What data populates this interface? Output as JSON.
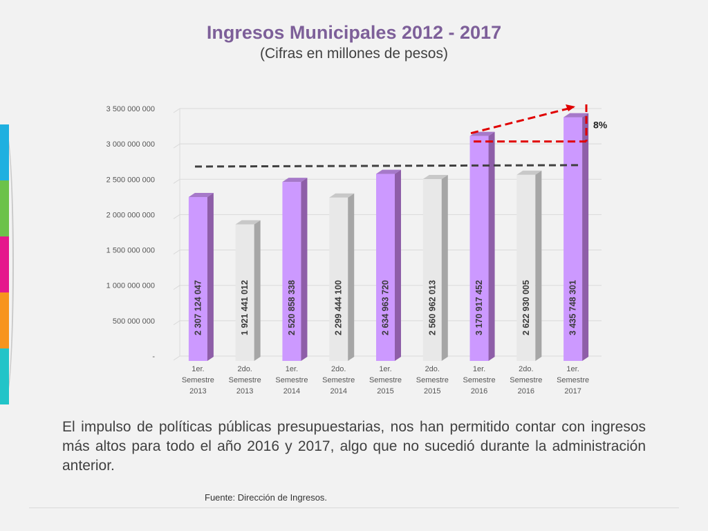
{
  "header": {
    "title": "Ingresos Municipales 2012 - 2017",
    "subtitle": "(Cifras en millones de pesos)"
  },
  "chart_data": {
    "type": "bar",
    "title": "",
    "xlabel": "",
    "ylabel": "",
    "ylim": [
      0,
      3500000000
    ],
    "y_ticks": [
      {
        "value": 0,
        "label": "-"
      },
      {
        "value": 500000000,
        "label": "500 000 000"
      },
      {
        "value": 1000000000,
        "label": "1 000 000 000"
      },
      {
        "value": 1500000000,
        "label": "1 500 000 000"
      },
      {
        "value": 2000000000,
        "label": "2 000 000 000"
      },
      {
        "value": 2500000000,
        "label": "2 500 000 000"
      },
      {
        "value": 3000000000,
        "label": "3 000 000 000"
      },
      {
        "value": 3500000000,
        "label": "3 500 000 000"
      }
    ],
    "categories": [
      [
        "1er.",
        "Semestre",
        "2013"
      ],
      [
        "2do.",
        "Semestre",
        "2013"
      ],
      [
        "1er.",
        "Semestre",
        "2014"
      ],
      [
        "2do.",
        "Semestre",
        "2014"
      ],
      [
        "1er.",
        "Semestre",
        "2015"
      ],
      [
        "2do.",
        "Semestre",
        "2015"
      ],
      [
        "1er.",
        "Semestre",
        "2016"
      ],
      [
        "2do.",
        "Semestre",
        "2016"
      ],
      [
        "1er.",
        "Semestre",
        "2017"
      ]
    ],
    "values": [
      2307124047,
      1921441012,
      2520858338,
      2299444100,
      2634963720,
      2560962013,
      3170917452,
      2622930005,
      3435748301
    ],
    "value_labels": [
      "2 307 124 047",
      "1 921 441 012",
      "2 520 858 338",
      "2 299 444 100",
      "2 634 963 720",
      "2 560 962 013",
      "3 170 917 452",
      "2 622 930 005",
      "3 435 748 301"
    ],
    "bar_kinds": [
      "first",
      "second",
      "first",
      "second",
      "first",
      "second",
      "first",
      "second",
      "first"
    ],
    "colors": {
      "first_front": "#cc99ff",
      "first_side": "#8e5ea8",
      "first_top": "#a679c9",
      "second_front": "#e8e8e8",
      "second_side": "#a6a6a6",
      "second_top": "#c8c8c8",
      "grid": "#d9d9d9",
      "trend": "#404040",
      "growth": "#e00000"
    },
    "trend_line_values": [
      2680000000,
      2700000000
    ],
    "growth_annotation": {
      "label": "8%"
    },
    "grid": true,
    "legend": "none"
  },
  "body": {
    "text": "El impulso de políticas públicas presupuestarias, nos han permitido contar con ingresos más altos para todo el año 2016 y 2017, algo que no sucedió durante la administración anterior."
  },
  "footer": {
    "source": "Fuente: Dirección de Ingresos."
  },
  "decor": {
    "side_colors": [
      "#1fb0e0",
      "#6cc24a",
      "#e5178c",
      "#f7941d",
      "#22c4c8"
    ]
  }
}
